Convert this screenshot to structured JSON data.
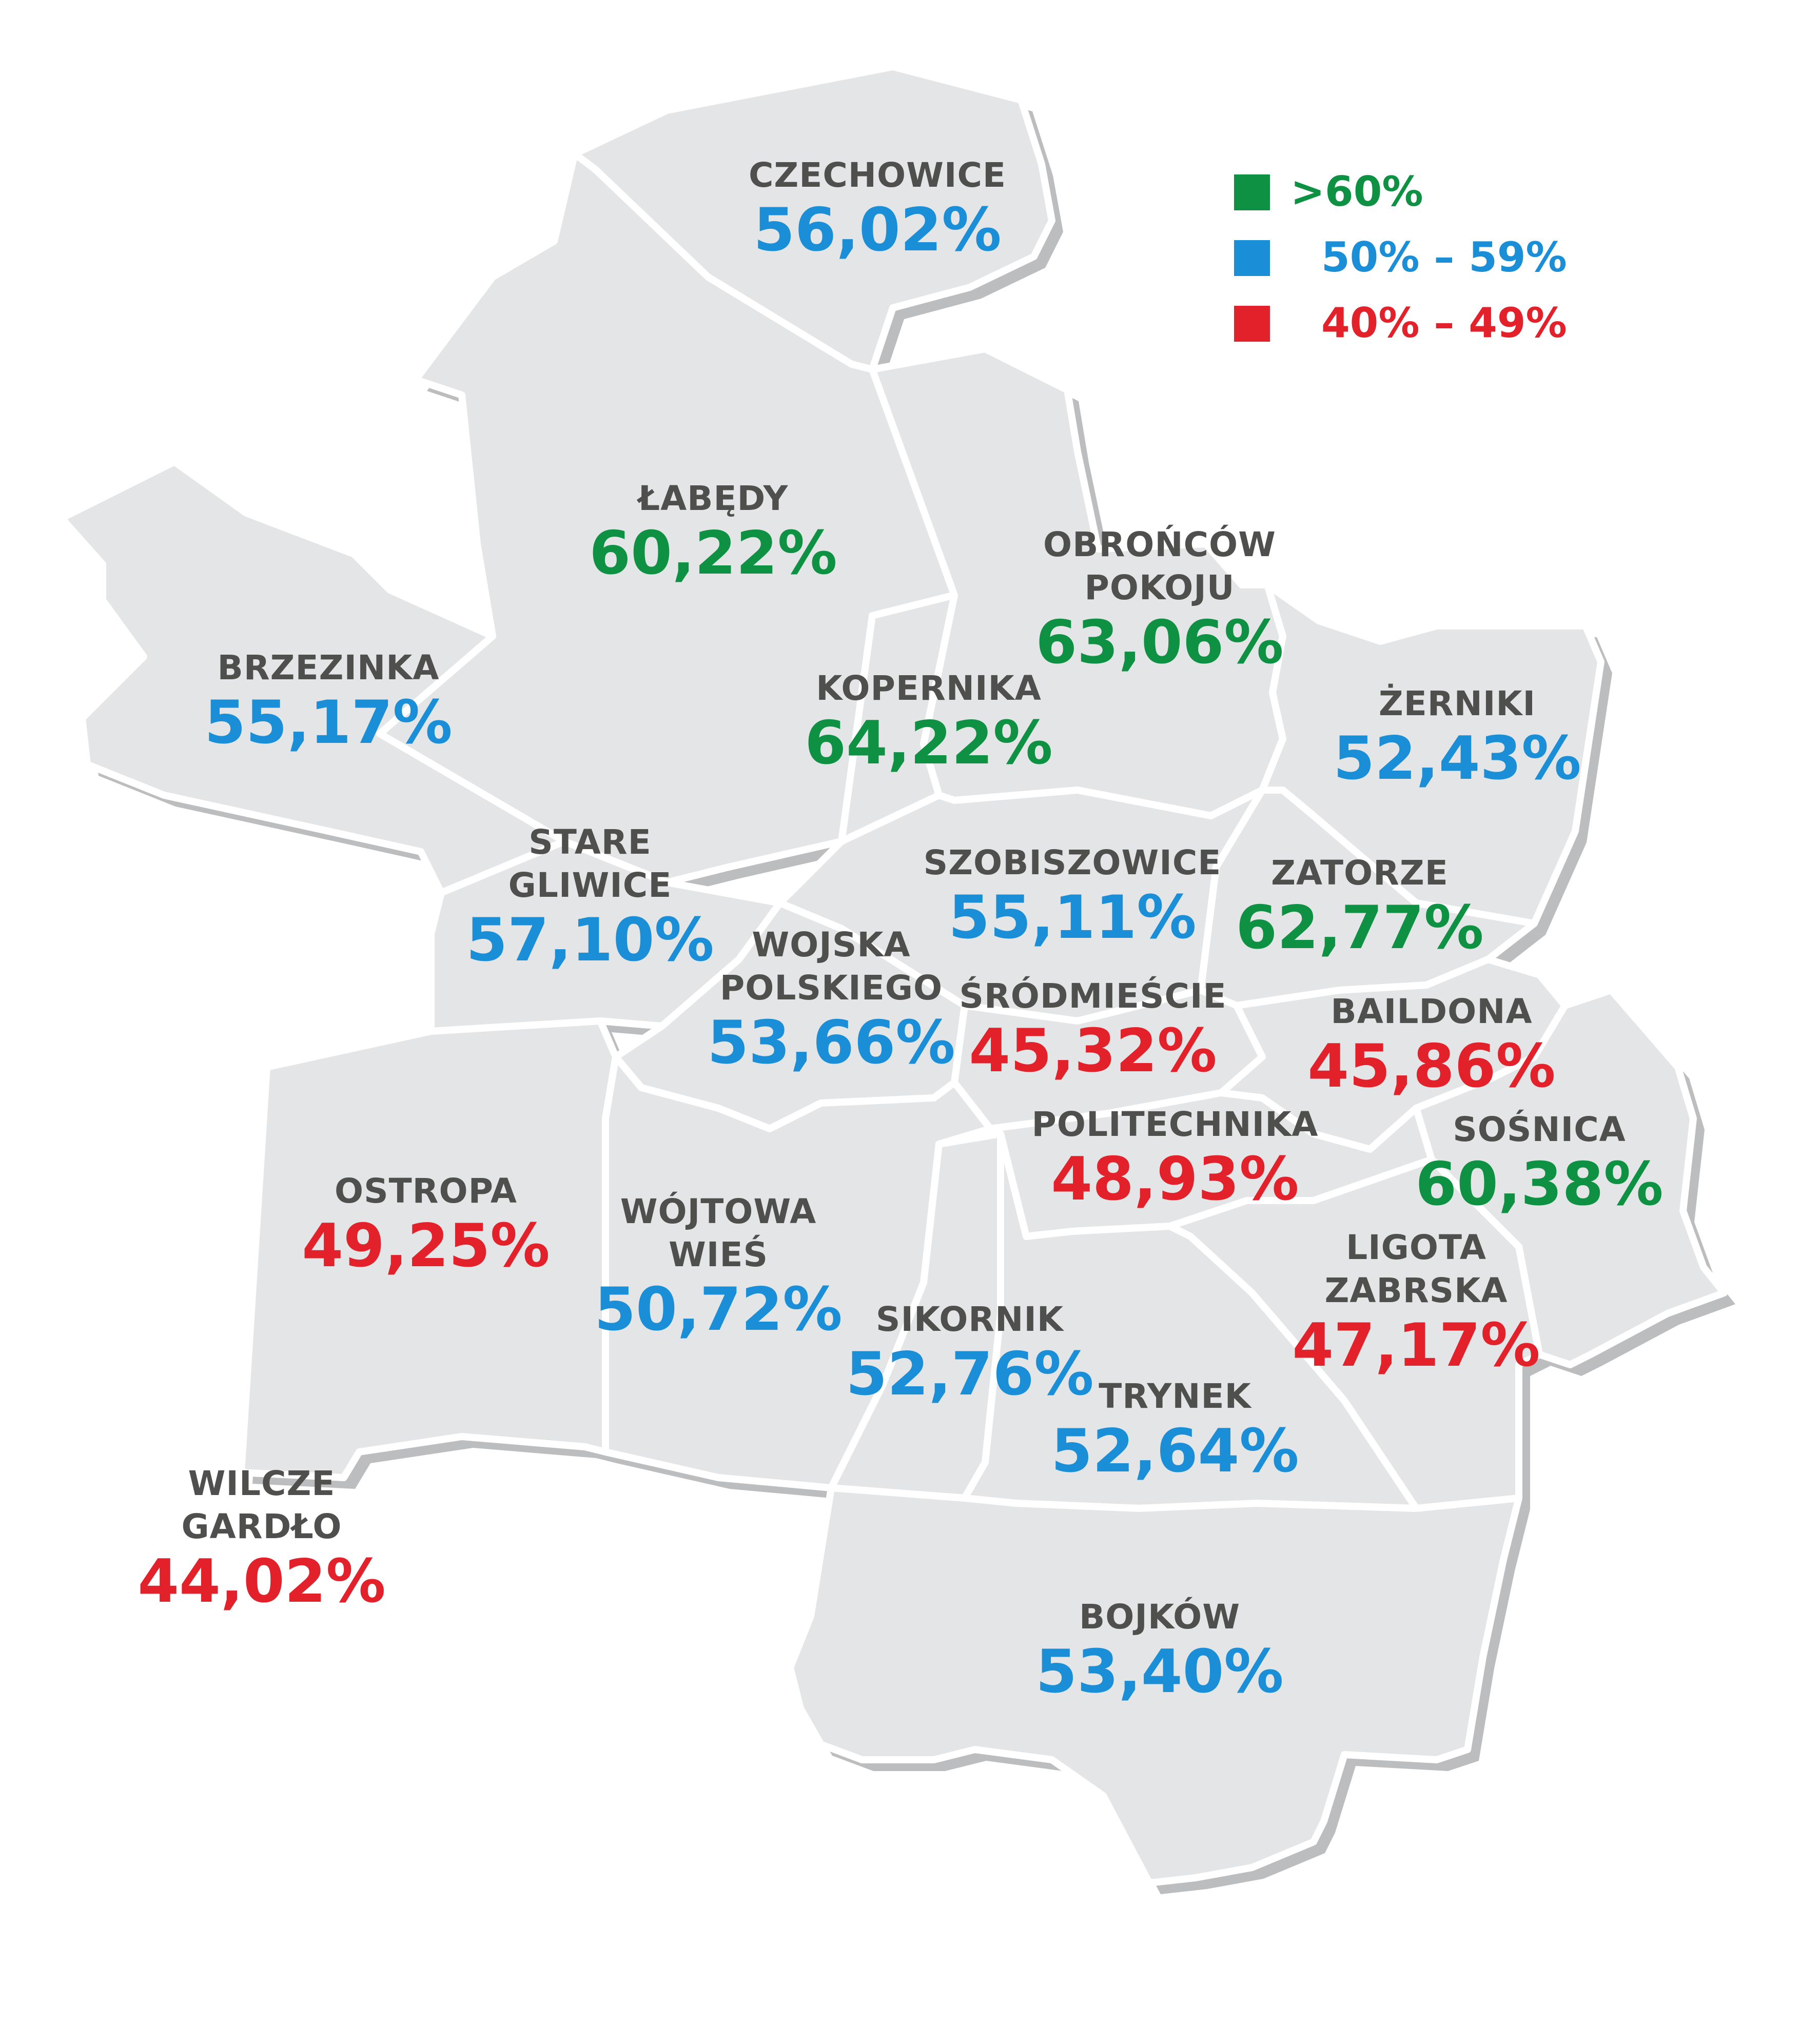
{
  "colors": {
    "green": "#0e9143",
    "blue": "#1a8ed6",
    "red": "#e3212b",
    "district_fill": "#e4e5e6",
    "border": "#ffffff",
    "shadow": "#bcbdbf",
    "name_text": "#4f4f4d"
  },
  "legend": [
    {
      "label": ">60%",
      "color_key": "green"
    },
    {
      "label": "50% – 59%",
      "color_key": "blue"
    },
    {
      "label": "40% – 49%",
      "color_key": "red"
    }
  ],
  "districts": [
    {
      "id": "czechowice",
      "name_lines": [
        "CZECHOWICE"
      ],
      "percent": "56,02%",
      "value": 56.02,
      "color_key": "blue"
    },
    {
      "id": "labedy",
      "name_lines": [
        "ŁABĘDY"
      ],
      "percent": "60,22%",
      "value": 60.22,
      "color_key": "green"
    },
    {
      "id": "obroncow-pokoju",
      "name_lines": [
        "OBROŃCÓW",
        "POKOJU"
      ],
      "percent": "63,06%",
      "value": 63.06,
      "color_key": "green"
    },
    {
      "id": "brzezinka",
      "name_lines": [
        "BRZEZINKA"
      ],
      "percent": "55,17%",
      "value": 55.17,
      "color_key": "blue"
    },
    {
      "id": "kopernika",
      "name_lines": [
        "KOPERNIKA"
      ],
      "percent": "64,22%",
      "value": 64.22,
      "color_key": "green"
    },
    {
      "id": "zerniki",
      "name_lines": [
        "ŻERNIKI"
      ],
      "percent": "52,43%",
      "value": 52.43,
      "color_key": "blue"
    },
    {
      "id": "stare-gliwice",
      "name_lines": [
        "STARE",
        "GLIWICE"
      ],
      "percent": "57,10%",
      "value": 57.1,
      "color_key": "blue"
    },
    {
      "id": "szobiszowice",
      "name_lines": [
        "SZOBISZOWICE"
      ],
      "percent": "55,11%",
      "value": 55.11,
      "color_key": "blue"
    },
    {
      "id": "zatorze",
      "name_lines": [
        "ZATORZE"
      ],
      "percent": "62,77%",
      "value": 62.77,
      "color_key": "green"
    },
    {
      "id": "wojska-polskiego",
      "name_lines": [
        "WOJSKA",
        "POLSKIEGO"
      ],
      "percent": "53,66%",
      "value": 53.66,
      "color_key": "blue"
    },
    {
      "id": "srodmiescie",
      "name_lines": [
        "ŚRÓDMIEŚCIE"
      ],
      "percent": "45,32%",
      "value": 45.32,
      "color_key": "red"
    },
    {
      "id": "baildona",
      "name_lines": [
        "BAILDONA"
      ],
      "percent": "45,86%",
      "value": 45.86,
      "color_key": "red"
    },
    {
      "id": "politechnika",
      "name_lines": [
        "POLITECHNIKA"
      ],
      "percent": "48,93%",
      "value": 48.93,
      "color_key": "red"
    },
    {
      "id": "sosnica",
      "name_lines": [
        "SOŚNICA"
      ],
      "percent": "60,38%",
      "value": 60.38,
      "color_key": "green"
    },
    {
      "id": "ostropa",
      "name_lines": [
        "OSTROPA"
      ],
      "percent": "49,25%",
      "value": 49.25,
      "color_key": "red"
    },
    {
      "id": "wojtowa-wies",
      "name_lines": [
        "WÓJTOWA",
        "WIEŚ"
      ],
      "percent": "50,72%",
      "value": 50.72,
      "color_key": "blue"
    },
    {
      "id": "ligota-zabrska",
      "name_lines": [
        "LIGOTA",
        "ZABRSKA"
      ],
      "percent": "47,17%",
      "value": 47.17,
      "color_key": "red"
    },
    {
      "id": "sikornik",
      "name_lines": [
        "SIKORNIK"
      ],
      "percent": "52,76%",
      "value": 52.76,
      "color_key": "blue"
    },
    {
      "id": "trynek",
      "name_lines": [
        "TRYNEK"
      ],
      "percent": "52,64%",
      "value": 52.64,
      "color_key": "blue"
    },
    {
      "id": "wilcze-gardlo",
      "name_lines": [
        "WILCZE",
        "GARDŁO"
      ],
      "percent": "44,02%",
      "value": 44.02,
      "color_key": "red"
    },
    {
      "id": "bojkow",
      "name_lines": [
        "BOJKÓW"
      ],
      "percent": "53,40%",
      "value": 53.4,
      "color_key": "blue"
    }
  ]
}
